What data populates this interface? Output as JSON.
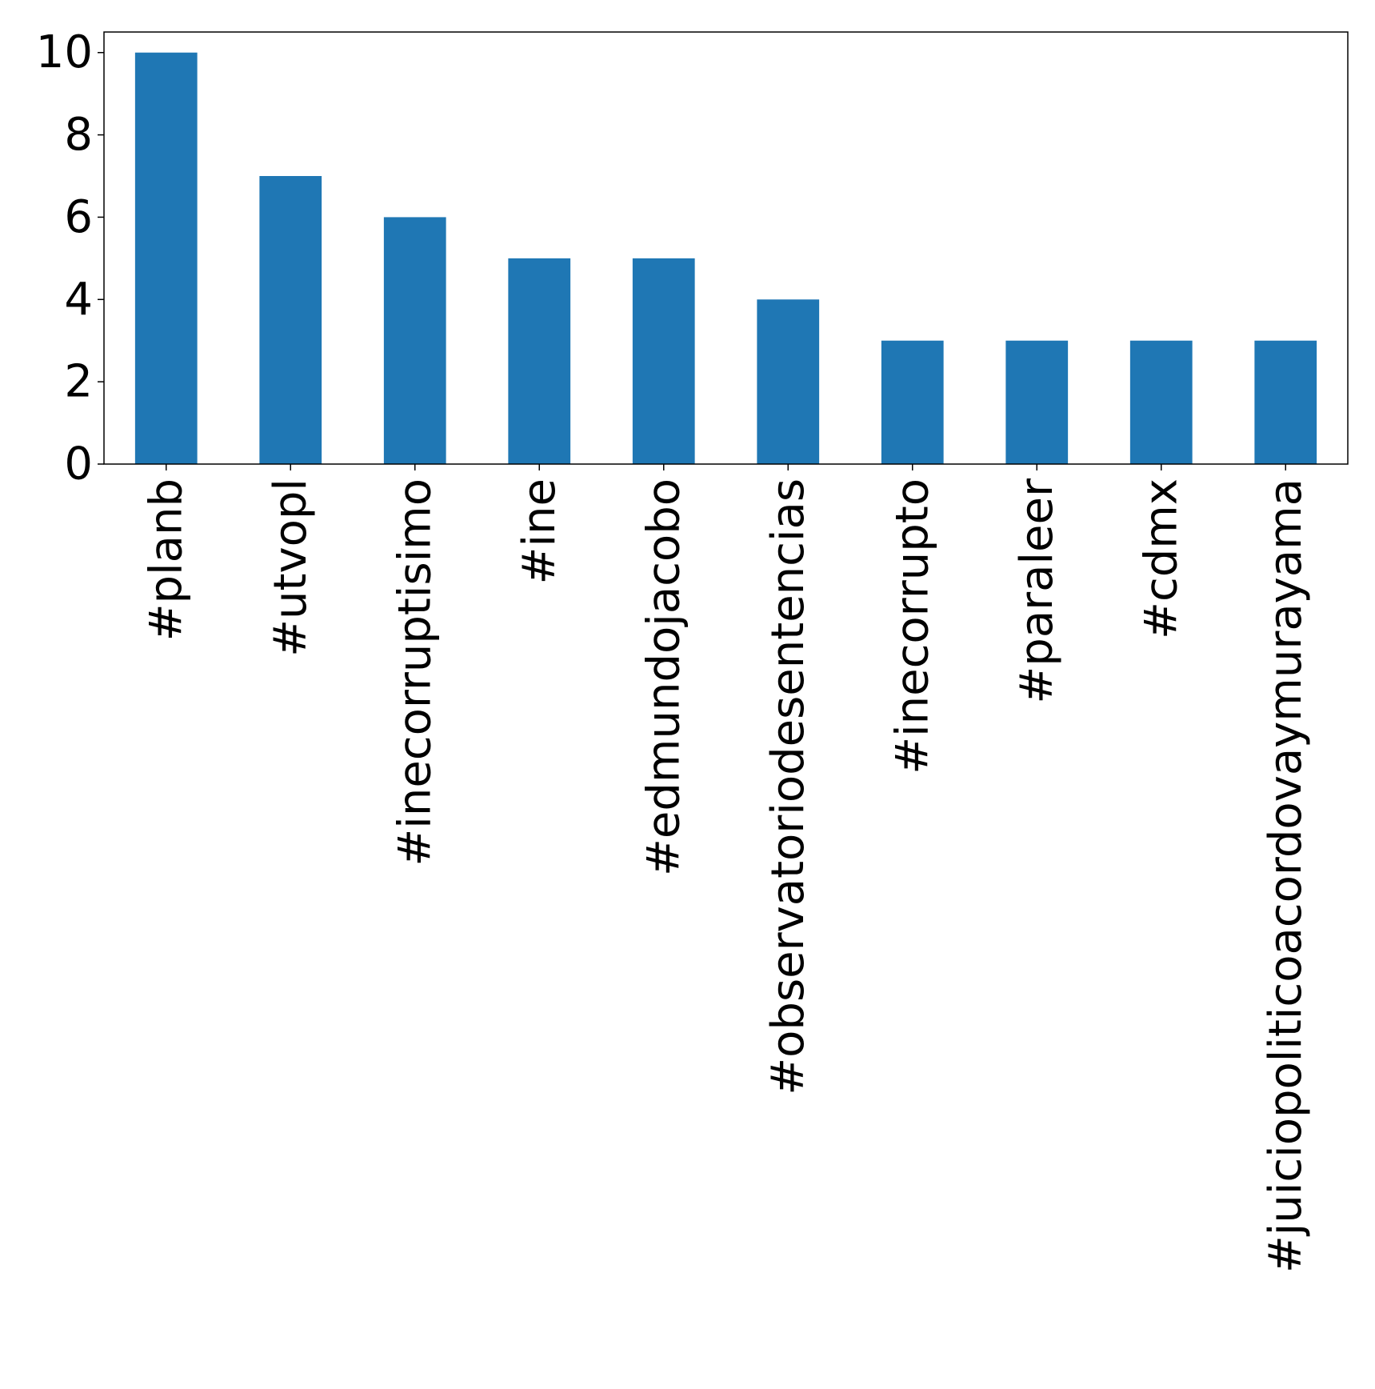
{
  "chart_data": {
    "type": "bar",
    "title": "",
    "xlabel": "",
    "ylabel": "",
    "categories": [
      "#planb",
      "#utvopl",
      "#inecorruptisimo",
      "#ine",
      "#edmundojacobo",
      "#observatoriodesentencias",
      "#inecorrupto",
      "#paraleer",
      "#cdmx",
      "#juiciopoliticoacordovaymurayama"
    ],
    "values": [
      10,
      7,
      6,
      5,
      5,
      4,
      3,
      3,
      3,
      3
    ],
    "ylim": [
      0,
      10.5
    ],
    "yticks": [
      "0",
      "2",
      "4",
      "6",
      "8",
      "10"
    ],
    "bar_color": "#1f77b4",
    "grid": false,
    "legend": "none"
  }
}
